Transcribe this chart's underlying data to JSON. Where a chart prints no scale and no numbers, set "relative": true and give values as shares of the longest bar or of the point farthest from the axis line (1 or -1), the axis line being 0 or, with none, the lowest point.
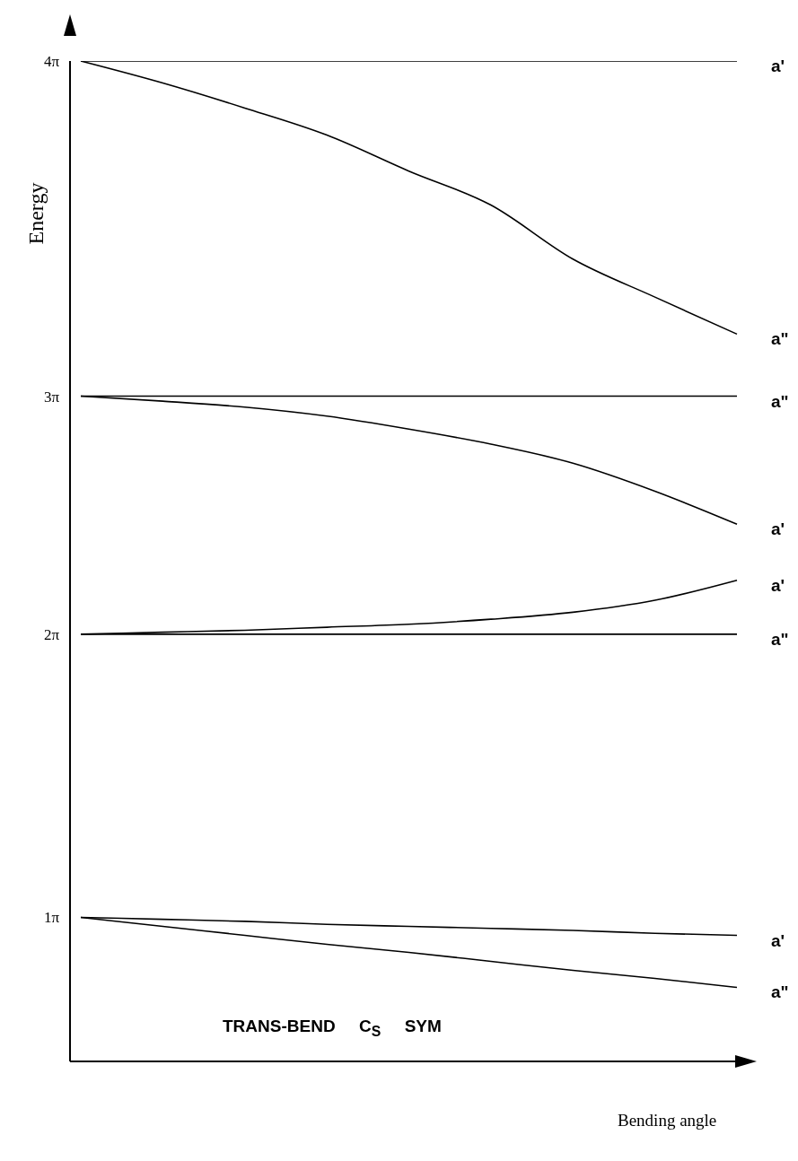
{
  "chart_data": {
    "type": "line",
    "ylabel": "Energy",
    "xlabel": "Bending angle",
    "relative": true,
    "annotations": [
      "TRANS-BEND     C$_{S}$     SYM",
      "4π",
      "3π",
      "2π",
      "1π"
    ],
    "categories": [
      null,
      null,
      null,
      null,
      null,
      null,
      null,
      null,
      null
    ],
    "marker": "none",
    "line_style": "solid",
    "series": [
      {
        "name": "a'",
        "color": "#000000",
        "values": [
          1,
          1,
          1,
          1,
          1,
          1,
          1,
          1,
          1
        ]
      },
      {
        "name": "a\"",
        "color": "#000000",
        "values": [
          1,
          0.978,
          0.953,
          0.926,
          0.89,
          0.856,
          0.802,
          0.764,
          0.727
        ]
      },
      {
        "name": "a\"",
        "color": "#000000",
        "values": [
          0.665,
          0.665,
          0.665,
          0.665,
          0.665,
          0.665,
          0.665,
          0.665,
          0.665
        ]
      },
      {
        "name": "a'",
        "color": "#000000",
        "values": [
          0.665,
          0.66,
          0.654,
          0.645,
          0.632,
          0.617,
          0.598,
          0.57,
          0.537
        ]
      },
      {
        "name": "a'",
        "color": "#000000",
        "values": [
          0.427,
          0.429,
          0.431,
          0.434,
          0.437,
          0.442,
          0.449,
          0.461,
          0.481
        ]
      },
      {
        "name": "a\"",
        "color": "#000000",
        "values": [
          0.427,
          0.427,
          0.427,
          0.427,
          0.427,
          0.427,
          0.427,
          0.427,
          0.427
        ]
      },
      {
        "name": "a'",
        "color": "#000000",
        "values": [
          0.144,
          0.142,
          0.14,
          0.137,
          0.135,
          0.133,
          0.131,
          0.128,
          0.126
        ]
      },
      {
        "name": "a\"",
        "color": "#000000",
        "values": [
          0.144,
          0.135,
          0.126,
          0.117,
          0.109,
          0.1,
          0.091,
          0.083,
          0.074
        ]
      }
    ]
  }
}
